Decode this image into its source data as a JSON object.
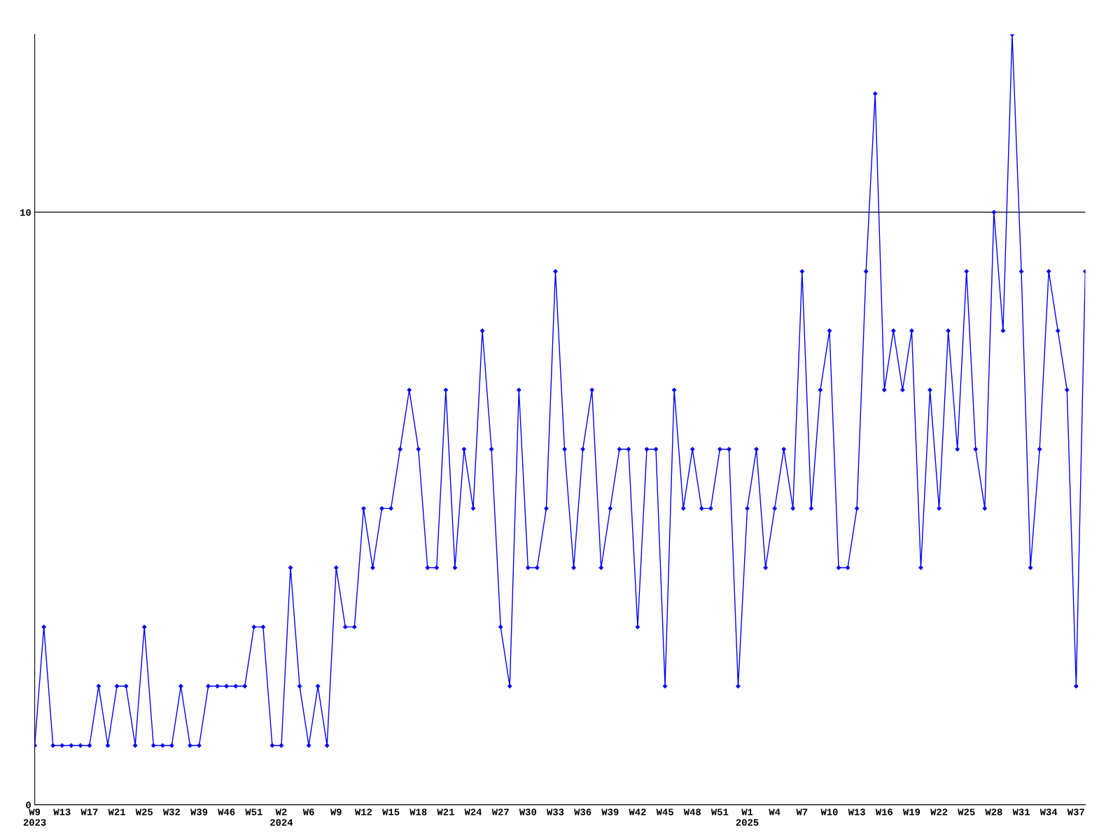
{
  "chart_data": {
    "type": "line",
    "categories": [
      "W9\n2023",
      null,
      null,
      "W13",
      null,
      null,
      "W17",
      null,
      null,
      "W21",
      null,
      null,
      "W25",
      null,
      null,
      "W32",
      null,
      null,
      "W39",
      null,
      null,
      "W46",
      null,
      null,
      "W51",
      null,
      null,
      "W2\n2024",
      null,
      null,
      "W6",
      null,
      null,
      "W9",
      null,
      null,
      "W12",
      null,
      null,
      "W15",
      null,
      null,
      "W18",
      null,
      null,
      "W21",
      null,
      null,
      "W24",
      null,
      null,
      "W27",
      null,
      null,
      "W30",
      null,
      null,
      "W33",
      null,
      null,
      "W36",
      null,
      null,
      "W39",
      null,
      null,
      "W42",
      null,
      null,
      "W45",
      null,
      null,
      "W48",
      null,
      null,
      "W51",
      null,
      null,
      "W1\n2025",
      null,
      null,
      "W4",
      null,
      null,
      "W7",
      null,
      null,
      "W10",
      null,
      null,
      "W13",
      null,
      null,
      "W16",
      null,
      null,
      "W19",
      null,
      null,
      "W22",
      null,
      null,
      "W25",
      null,
      null,
      "W28",
      null,
      null,
      "W31",
      null,
      null,
      "W34",
      null,
      null,
      "W37",
      null
    ],
    "series": [
      {
        "color": "#0000ff",
        "values": [
          1,
          3,
          1,
          1,
          1,
          1,
          1,
          2,
          1,
          2,
          2,
          1,
          3,
          1,
          1,
          1,
          2,
          1,
          1,
          2,
          2,
          2,
          2,
          2,
          3,
          3,
          1,
          1,
          4,
          2,
          1,
          2,
          1,
          4,
          3,
          3,
          5,
          4,
          5,
          5,
          6,
          7,
          6,
          4,
          4,
          7,
          4,
          6,
          5,
          8,
          6,
          3,
          2,
          7,
          4,
          4,
          5,
          9,
          6,
          4,
          6,
          7,
          4,
          5,
          6,
          6,
          3,
          6,
          6,
          2,
          7,
          5,
          6,
          5,
          5,
          6,
          6,
          2,
          5,
          6,
          4,
          5,
          6,
          5,
          9,
          5,
          7,
          8,
          4,
          4,
          5,
          9,
          12,
          7,
          8,
          7,
          8,
          4,
          7,
          5,
          8,
          6,
          9,
          6,
          5,
          10,
          8,
          13,
          9,
          4,
          6,
          9,
          8,
          7,
          2,
          9
        ]
      }
    ],
    "ylim": [
      0,
      13
    ],
    "yticks": [
      0,
      10
    ],
    "grid": "y",
    "marker": "diamond",
    "line_style": "solid",
    "legend": false
  }
}
